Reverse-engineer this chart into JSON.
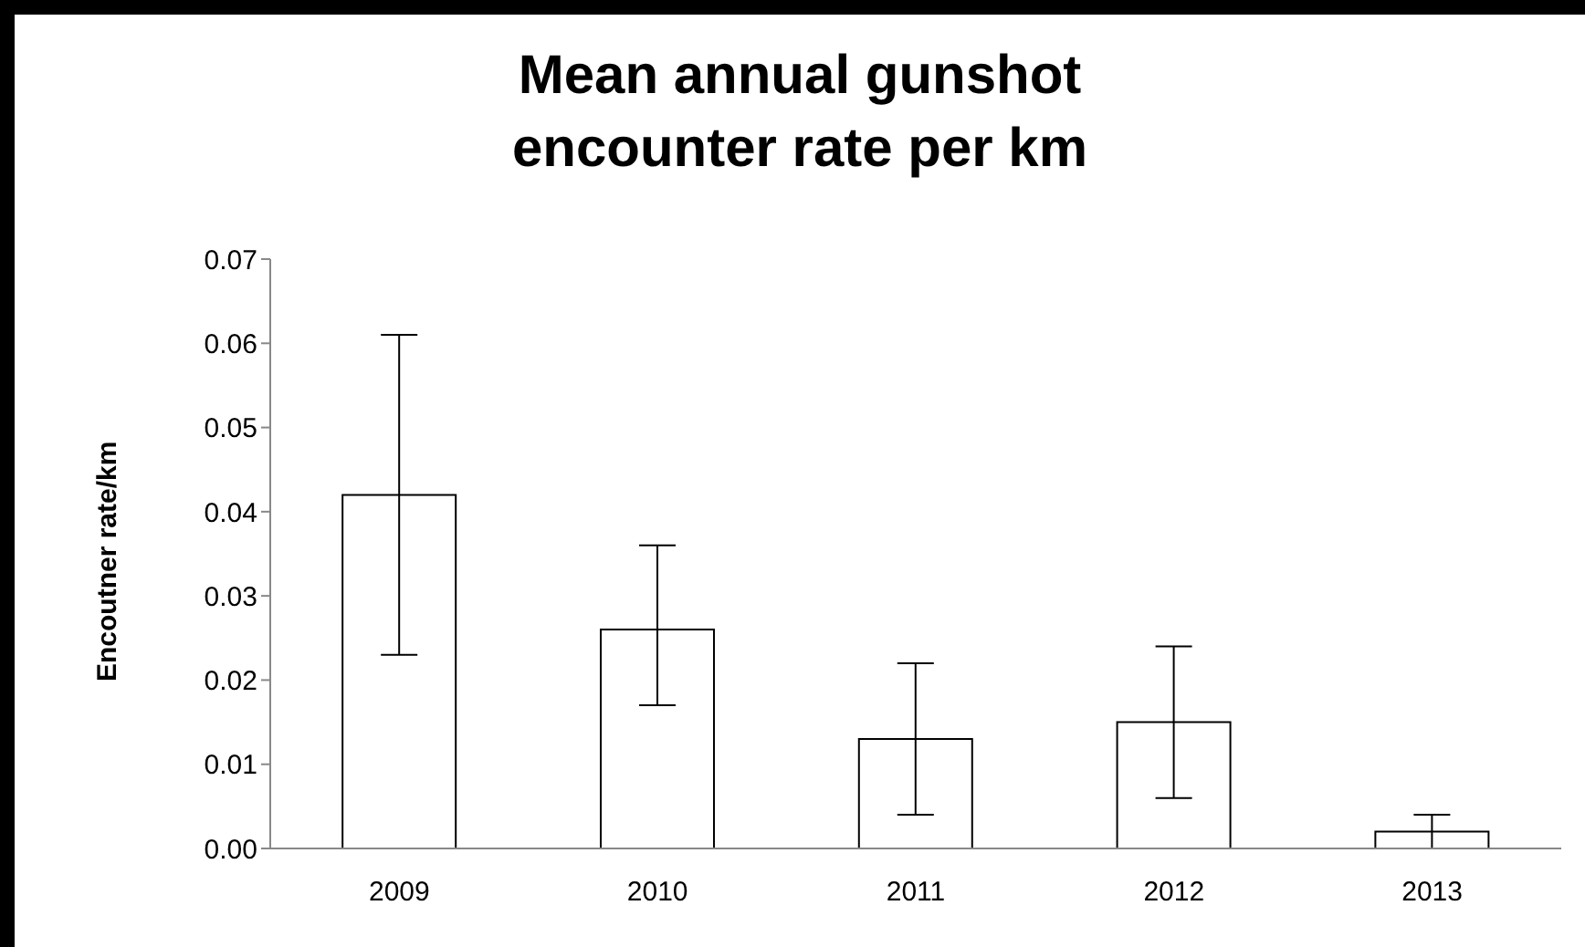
{
  "chart_data": {
    "type": "bar",
    "title": "Mean annual gunshot encounter rate per km",
    "ylabel": "Encoutner rate/km",
    "categories": [
      "2009",
      "2010",
      "2011",
      "2012",
      "2013"
    ],
    "values": [
      0.042,
      0.026,
      0.013,
      0.015,
      0.002
    ],
    "errors": [
      [
        0.023,
        0.061
      ],
      [
        0.017,
        0.036
      ],
      [
        0.004,
        0.022
      ],
      [
        0.006,
        0.024
      ],
      [
        0.0,
        0.004
      ]
    ],
    "color": "#ffffff",
    "ylim": [
      0,
      0.07
    ],
    "yticks": [
      {
        "value": 0,
        "label": "0.00"
      },
      {
        "value": 0.01,
        "label": "0.01"
      },
      {
        "value": 0.02,
        "label": "0.02"
      },
      {
        "value": 0.03,
        "label": "0.03"
      },
      {
        "value": 0.04,
        "label": "0.04"
      },
      {
        "value": 0.05,
        "label": "0.05"
      },
      {
        "value": 0.06,
        "label": "0.06"
      },
      {
        "value": 0.07,
        "label": "0.07"
      }
    ],
    "grid": false,
    "legend": false
  }
}
